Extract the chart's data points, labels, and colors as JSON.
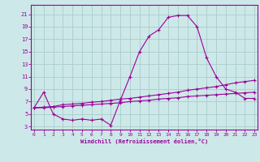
{
  "xlabel": "Windchill (Refroidissement éolien,°C)",
  "bg_color": "#cde8e8",
  "grid_color": "#aacccc",
  "line_color": "#990099",
  "x_ticks": [
    0,
    1,
    2,
    3,
    4,
    5,
    6,
    7,
    8,
    9,
    10,
    11,
    12,
    13,
    14,
    15,
    16,
    17,
    18,
    19,
    20,
    21,
    22,
    23
  ],
  "y_ticks": [
    3,
    5,
    7,
    9,
    11,
    13,
    15,
    17,
    19,
    21
  ],
  "xlim": [
    -0.3,
    23.3
  ],
  "ylim": [
    2.5,
    22.5
  ],
  "series1_x": [
    0,
    1,
    2,
    3,
    4,
    5,
    6,
    7,
    8,
    9,
    10,
    11,
    12,
    13,
    14,
    15,
    16,
    17,
    18,
    19,
    20,
    21,
    22,
    23
  ],
  "series1_y": [
    6.0,
    8.5,
    5.0,
    4.2,
    4.0,
    4.2,
    4.0,
    4.2,
    3.2,
    7.2,
    11.0,
    15.0,
    17.5,
    18.5,
    20.5,
    20.8,
    20.8,
    19.0,
    14.0,
    11.0,
    9.0,
    8.5,
    7.5,
    7.5
  ],
  "series2_x": [
    0,
    1,
    2,
    3,
    4,
    5,
    6,
    7,
    8,
    9,
    10,
    11,
    12,
    13,
    14,
    15,
    16,
    17,
    18,
    19,
    20,
    21,
    22,
    23
  ],
  "series2_y": [
    6.0,
    6.1,
    6.2,
    6.5,
    6.6,
    6.7,
    6.9,
    7.0,
    7.2,
    7.4,
    7.5,
    7.7,
    7.9,
    8.1,
    8.3,
    8.5,
    8.8,
    9.0,
    9.2,
    9.4,
    9.7,
    10.0,
    10.2,
    10.4
  ],
  "series3_x": [
    0,
    1,
    2,
    3,
    4,
    5,
    6,
    7,
    8,
    9,
    10,
    11,
    12,
    13,
    14,
    15,
    16,
    17,
    18,
    19,
    20,
    21,
    22,
    23
  ],
  "series3_y": [
    6.0,
    6.0,
    6.1,
    6.2,
    6.3,
    6.4,
    6.5,
    6.6,
    6.7,
    6.8,
    7.0,
    7.1,
    7.2,
    7.4,
    7.5,
    7.6,
    7.8,
    7.9,
    8.0,
    8.1,
    8.2,
    8.3,
    8.4,
    8.5
  ]
}
